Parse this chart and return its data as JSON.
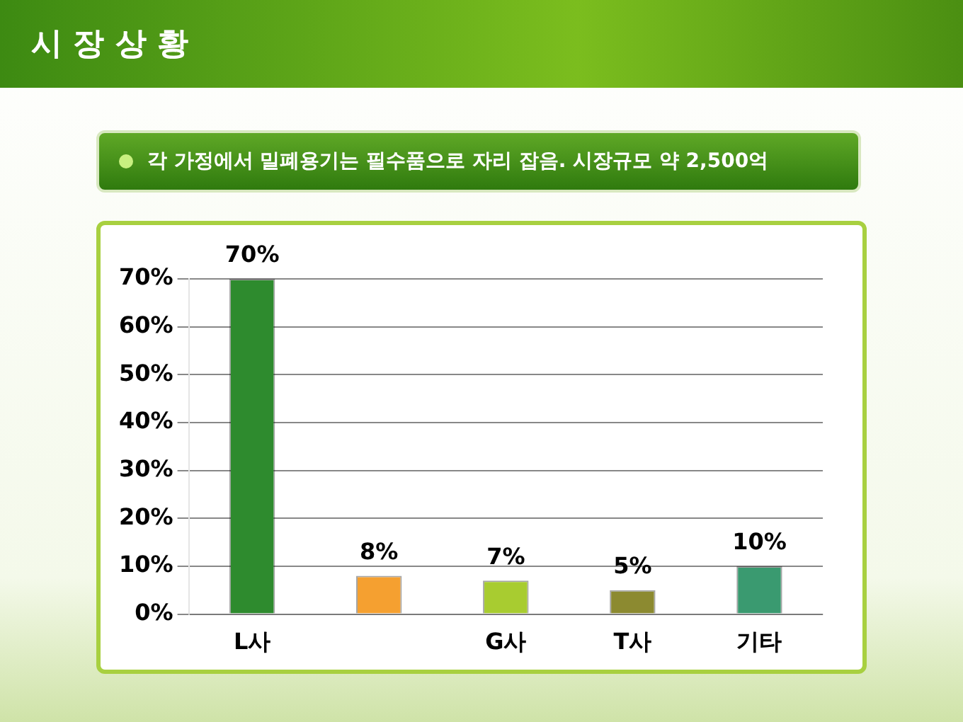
{
  "chart_data": {
    "type": "bar",
    "title": "시 장 상 황",
    "subtitle": "각 가정에서 밀폐용기는 필수품으로 자리 잡음. 시장규모 약 2,500억",
    "categories": [
      "L사",
      null,
      "G사",
      "T사",
      "기타"
    ],
    "values": [
      70,
      8,
      7,
      5,
      10
    ],
    "colors": [
      "#2e8b2e",
      "#f5a030",
      "#a8cc30",
      "#8c8a30",
      "#3a9a70"
    ],
    "value_labels": [
      "70%",
      "8%",
      "7%",
      "5%",
      "10%"
    ],
    "ylim": [
      0,
      70
    ],
    "yticks": [
      {
        "value": 0,
        "label": "0%"
      },
      {
        "value": 10,
        "label": "10%"
      },
      {
        "value": 20,
        "label": "20%"
      },
      {
        "value": 30,
        "label": "30%"
      },
      {
        "value": 40,
        "label": "40%"
      },
      {
        "value": 50,
        "label": "50%"
      },
      {
        "value": 60,
        "label": "60%"
      },
      {
        "value": 70,
        "label": "70%"
      }
    ],
    "grid": "y",
    "legend": false
  }
}
